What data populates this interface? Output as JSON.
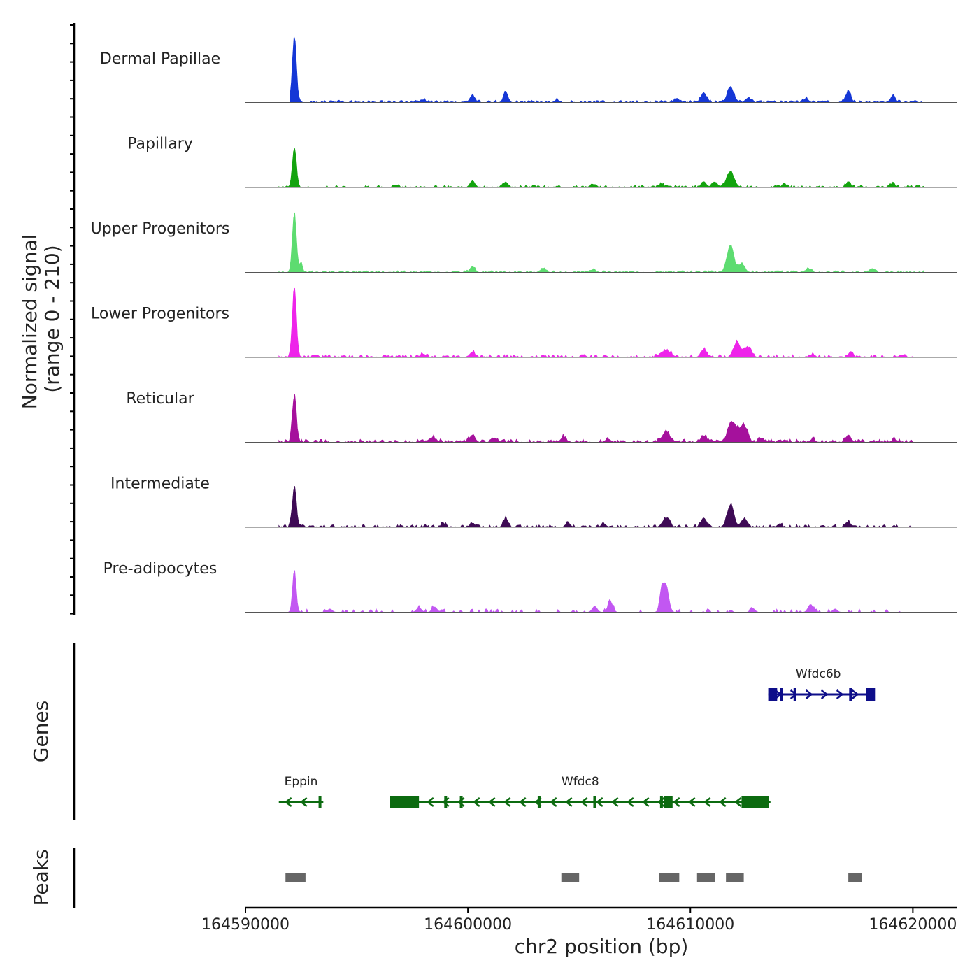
{
  "chart_data": {
    "type": "area",
    "title": "",
    "ylabel_line1": "Normalized signal",
    "ylabel_line2": "(range 0 - 210)",
    "y_range": [
      0,
      210
    ],
    "xlabel": "chr2 position (bp)",
    "chromosome": "chr2",
    "x_range": [
      164590000,
      164622000
    ],
    "x_ticks": [
      164590000,
      164600000,
      164610000,
      164620000
    ],
    "x_tick_labels": [
      "164590000",
      "164600000",
      "164610000",
      "164620000"
    ],
    "genes_label": "Genes",
    "peaks_label": "Peaks",
    "tracks": [
      {
        "name": "Dermal Papillae",
        "color": "#1537d6",
        "peaks": [
          [
            164592200,
            200,
            90
          ],
          [
            164601700,
            30,
            100
          ],
          [
            164611800,
            48,
            140
          ],
          [
            164610600,
            28,
            130
          ],
          [
            164600200,
            22,
            110
          ],
          [
            164617100,
            33,
            110
          ],
          [
            164619100,
            18,
            110
          ],
          [
            164609400,
            10,
            110
          ],
          [
            164598000,
            8,
            100
          ],
          [
            164604000,
            8,
            100
          ],
          [
            164612600,
            14,
            110
          ],
          [
            164615200,
            12,
            110
          ]
        ],
        "noise": [
          164592000,
          164620400,
          5,
          111
        ]
      },
      {
        "name": "Papillary",
        "color": "#13a30e",
        "peaks": [
          [
            164592200,
            120,
            90
          ],
          [
            164611800,
            46,
            170
          ],
          [
            164611100,
            16,
            120
          ],
          [
            164610600,
            18,
            110
          ],
          [
            164600200,
            20,
            110
          ],
          [
            164601700,
            16,
            110
          ],
          [
            164617100,
            14,
            110
          ],
          [
            164619100,
            10,
            110
          ],
          [
            164596800,
            8,
            100
          ],
          [
            164605600,
            10,
            100
          ],
          [
            164608700,
            9,
            100
          ],
          [
            164614200,
            8,
            100
          ]
        ],
        "noise": [
          164591500,
          164620500,
          5,
          222
        ]
      },
      {
        "name": "Upper Progenitors",
        "color": "#5ddc70",
        "peaks": [
          [
            164592200,
            180,
            90
          ],
          [
            164592500,
            32,
            60
          ],
          [
            164611800,
            82,
            150
          ],
          [
            164612300,
            26,
            140
          ],
          [
            164600200,
            18,
            110
          ],
          [
            164603400,
            12,
            110
          ],
          [
            164615300,
            10,
            110
          ],
          [
            164618200,
            10,
            110
          ],
          [
            164605600,
            8,
            100
          ]
        ],
        "noise": [
          164591500,
          164620500,
          4,
          333
        ]
      },
      {
        "name": "Lower Progenitors",
        "color": "#ee24ea",
        "peaks": [
          [
            164592200,
            210,
            90
          ],
          [
            164612100,
            44,
            160
          ],
          [
            164612600,
            30,
            150
          ],
          [
            164610600,
            24,
            130
          ],
          [
            164608900,
            20,
            220
          ],
          [
            164600200,
            16,
            120
          ],
          [
            164598000,
            10,
            110
          ],
          [
            164617200,
            12,
            110
          ],
          [
            164615500,
            8,
            110
          ],
          [
            164619500,
            8,
            110
          ],
          [
            164605200,
            8,
            100
          ]
        ],
        "noise": [
          164591500,
          164620000,
          6,
          444
        ]
      },
      {
        "name": "Reticular",
        "color": "#a5119c",
        "peaks": [
          [
            164592200,
            140,
            90
          ],
          [
            164611900,
            60,
            200
          ],
          [
            164612400,
            50,
            160
          ],
          [
            164608900,
            32,
            160
          ],
          [
            164610600,
            20,
            130
          ],
          [
            164600200,
            22,
            120
          ],
          [
            164598400,
            14,
            160
          ],
          [
            164604300,
            16,
            120
          ],
          [
            164601200,
            12,
            120
          ],
          [
            164617100,
            22,
            110
          ],
          [
            164613200,
            12,
            120
          ],
          [
            164606300,
            10,
            120
          ],
          [
            164615500,
            8,
            110
          ],
          [
            164619200,
            8,
            110
          ]
        ],
        "noise": [
          164591500,
          164620000,
          7,
          555
        ]
      },
      {
        "name": "Intermediate",
        "color": "#3e0a55",
        "peaks": [
          [
            164592200,
            120,
            90
          ],
          [
            164611800,
            66,
            150
          ],
          [
            164612400,
            24,
            130
          ],
          [
            164610600,
            28,
            130
          ],
          [
            164608900,
            26,
            160
          ],
          [
            164601700,
            26,
            110
          ],
          [
            164600200,
            12,
            110
          ],
          [
            164598900,
            10,
            110
          ],
          [
            164604500,
            12,
            110
          ],
          [
            164606100,
            10,
            110
          ],
          [
            164617100,
            16,
            110
          ],
          [
            164614000,
            8,
            110
          ]
        ],
        "noise": [
          164591500,
          164620000,
          6,
          666
        ]
      },
      {
        "name": "Pre-adipocytes",
        "color": "#c257f2",
        "peaks": [
          [
            164592200,
            130,
            80
          ],
          [
            164608900,
            82,
            120
          ],
          [
            164608700,
            56,
            90
          ],
          [
            164606400,
            32,
            110
          ],
          [
            164605700,
            18,
            110
          ],
          [
            164615400,
            24,
            110
          ],
          [
            164598500,
            16,
            110
          ],
          [
            164597800,
            14,
            110
          ],
          [
            164593800,
            10,
            100
          ],
          [
            164612800,
            12,
            100
          ],
          [
            164616500,
            10,
            100
          ]
        ],
        "noise": [
          164591500,
          164619800,
          5,
          777
        ],
        "sparse": true
      }
    ],
    "genes": [
      {
        "name": "Wfdc6b",
        "strand": "+",
        "color": "#0e0e8a",
        "start": 164613500,
        "end": 164618000,
        "row": 0,
        "thick": [
          [
            164613500,
            164613900
          ],
          [
            164617900,
            164618300
          ]
        ],
        "exons": [
          164614100,
          164614700,
          164617200
        ]
      },
      {
        "name": "Eppin",
        "strand": "-",
        "color": "#0c6b10",
        "start": 164591500,
        "end": 164593500,
        "row": 1,
        "thick": [],
        "exons": [
          164593350
        ]
      },
      {
        "name": "Wfdc8",
        "strand": "-",
        "color": "#0c6b10",
        "start": 164596500,
        "end": 164613600,
        "row": 1,
        "thick": [
          [
            164596500,
            164597800
          ],
          [
            164608800,
            164609200
          ],
          [
            164612300,
            164613400
          ]
        ],
        "exons": [
          164599000,
          164599700,
          164603200,
          164605700,
          164608700,
          164613450
        ]
      }
    ],
    "peak_regions": [
      [
        164591800,
        164592700
      ],
      [
        164604200,
        164605000
      ],
      [
        164608600,
        164609500
      ],
      [
        164610300,
        164611100
      ],
      [
        164611600,
        164612400
      ],
      [
        164617100,
        164617700
      ]
    ]
  }
}
